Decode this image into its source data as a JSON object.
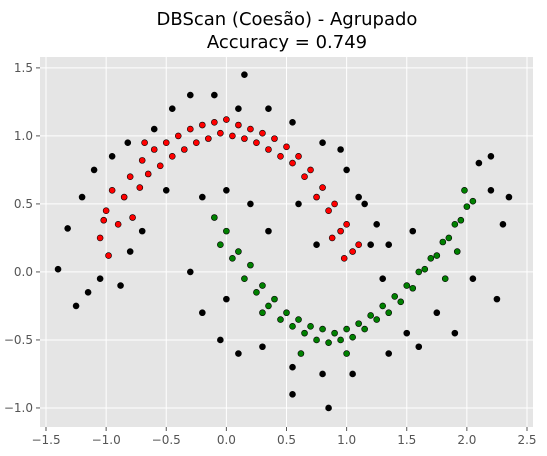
{
  "chart_data": {
    "type": "scatter",
    "title": "DBScan (Coesão) - Agrupado",
    "subtitle": "Accuracy = 0.749",
    "xlim": [
      -1.55,
      2.55
    ],
    "ylim": [
      -1.14,
      1.58
    ],
    "xticks": [
      -1.5,
      -1.0,
      -0.5,
      0.0,
      0.5,
      1.0,
      1.5,
      2.0,
      2.5
    ],
    "xtick_labels": [
      "−1.5",
      "−1.0",
      "−0.5",
      "0.0",
      "0.5",
      "1.0",
      "1.5",
      "2.0",
      "2.5"
    ],
    "yticks": [
      -1.0,
      -0.5,
      0.0,
      0.5,
      1.0,
      1.5
    ],
    "ytick_labels": [
      "−1.0",
      "−0.5",
      "0.0",
      "0.5",
      "1.0",
      "1.5"
    ],
    "grid": true,
    "background": "#e5e5e5",
    "series": [
      {
        "color": "#ff0000",
        "points": [
          [
            -1.05,
            0.25
          ],
          [
            -1.0,
            0.45
          ],
          [
            -0.95,
            0.6
          ],
          [
            -0.9,
            0.35
          ],
          [
            -0.85,
            0.55
          ],
          [
            -0.8,
            0.7
          ],
          [
            -0.78,
            0.4
          ],
          [
            -0.72,
            0.62
          ],
          [
            -0.7,
            0.82
          ],
          [
            -0.65,
            0.72
          ],
          [
            -0.6,
            0.9
          ],
          [
            -0.55,
            0.78
          ],
          [
            -0.5,
            0.95
          ],
          [
            -0.45,
            0.85
          ],
          [
            -0.4,
            1.0
          ],
          [
            -0.35,
            0.9
          ],
          [
            -0.3,
            1.05
          ],
          [
            -0.25,
            0.95
          ],
          [
            -0.2,
            1.08
          ],
          [
            -0.15,
            0.98
          ],
          [
            -0.1,
            1.1
          ],
          [
            -0.05,
            1.02
          ],
          [
            0.0,
            1.12
          ],
          [
            0.05,
            1.0
          ],
          [
            0.1,
            1.08
          ],
          [
            0.15,
            0.98
          ],
          [
            0.2,
            1.05
          ],
          [
            0.25,
            0.95
          ],
          [
            0.3,
            1.02
          ],
          [
            0.35,
            0.9
          ],
          [
            0.4,
            0.98
          ],
          [
            0.45,
            0.85
          ],
          [
            0.5,
            0.92
          ],
          [
            0.55,
            0.8
          ],
          [
            0.6,
            0.85
          ],
          [
            0.65,
            0.7
          ],
          [
            0.7,
            0.75
          ],
          [
            0.75,
            0.55
          ],
          [
            0.8,
            0.62
          ],
          [
            0.85,
            0.45
          ],
          [
            0.9,
            0.5
          ],
          [
            0.95,
            0.3
          ],
          [
            1.0,
            0.35
          ],
          [
            1.05,
            0.15
          ],
          [
            1.1,
            0.2
          ],
          [
            0.88,
            0.25
          ],
          [
            0.98,
            0.1
          ],
          [
            -0.98,
            0.12
          ],
          [
            -1.02,
            0.38
          ],
          [
            -0.68,
            0.95
          ]
        ]
      },
      {
        "color": "#008000",
        "points": [
          [
            -0.1,
            0.4
          ],
          [
            -0.05,
            0.2
          ],
          [
            0.0,
            0.3
          ],
          [
            0.05,
            0.1
          ],
          [
            0.1,
            0.15
          ],
          [
            0.15,
            -0.05
          ],
          [
            0.2,
            0.05
          ],
          [
            0.25,
            -0.15
          ],
          [
            0.3,
            -0.1
          ],
          [
            0.35,
            -0.25
          ],
          [
            0.4,
            -0.2
          ],
          [
            0.45,
            -0.35
          ],
          [
            0.5,
            -0.3
          ],
          [
            0.55,
            -0.4
          ],
          [
            0.6,
            -0.35
          ],
          [
            0.65,
            -0.45
          ],
          [
            0.7,
            -0.4
          ],
          [
            0.75,
            -0.5
          ],
          [
            0.8,
            -0.42
          ],
          [
            0.85,
            -0.52
          ],
          [
            0.9,
            -0.45
          ],
          [
            0.95,
            -0.5
          ],
          [
            1.0,
            -0.42
          ],
          [
            1.05,
            -0.48
          ],
          [
            1.1,
            -0.38
          ],
          [
            1.15,
            -0.42
          ],
          [
            1.2,
            -0.32
          ],
          [
            1.25,
            -0.35
          ],
          [
            1.3,
            -0.25
          ],
          [
            1.35,
            -0.3
          ],
          [
            1.4,
            -0.18
          ],
          [
            1.45,
            -0.22
          ],
          [
            1.5,
            -0.1
          ],
          [
            1.55,
            -0.12
          ],
          [
            1.6,
            0.0
          ],
          [
            1.65,
            0.02
          ],
          [
            1.7,
            0.1
          ],
          [
            1.75,
            0.12
          ],
          [
            1.8,
            0.22
          ],
          [
            1.85,
            0.25
          ],
          [
            1.9,
            0.35
          ],
          [
            1.95,
            0.38
          ],
          [
            2.0,
            0.48
          ],
          [
            2.05,
            0.52
          ],
          [
            1.98,
            0.6
          ],
          [
            1.92,
            0.15
          ],
          [
            1.82,
            -0.05
          ],
          [
            0.62,
            -0.6
          ],
          [
            1.0,
            -0.6
          ],
          [
            0.3,
            -0.3
          ]
        ]
      },
      {
        "color": "#000000",
        "points": [
          [
            -1.4,
            0.02
          ],
          [
            -1.32,
            0.32
          ],
          [
            -1.25,
            -0.25
          ],
          [
            -1.2,
            0.55
          ],
          [
            -1.15,
            -0.15
          ],
          [
            -1.1,
            0.75
          ],
          [
            -1.05,
            -0.05
          ],
          [
            -0.95,
            0.85
          ],
          [
            -0.88,
            -0.1
          ],
          [
            -0.82,
            0.95
          ],
          [
            -0.6,
            1.05
          ],
          [
            -0.45,
            1.2
          ],
          [
            -0.3,
            1.3
          ],
          [
            -0.1,
            1.3
          ],
          [
            0.1,
            1.2
          ],
          [
            0.35,
            1.2
          ],
          [
            0.55,
            1.1
          ],
          [
            0.8,
            0.95
          ],
          [
            1.0,
            0.75
          ],
          [
            1.15,
            0.5
          ],
          [
            1.2,
            0.2
          ],
          [
            0.1,
            -0.6
          ],
          [
            -0.2,
            -0.3
          ],
          [
            -0.3,
            0.0
          ],
          [
            0.55,
            -0.7
          ],
          [
            0.8,
            -0.75
          ],
          [
            1.05,
            -0.75
          ],
          [
            1.35,
            -0.6
          ],
          [
            1.6,
            -0.55
          ],
          [
            1.9,
            -0.45
          ],
          [
            2.1,
            0.8
          ],
          [
            2.2,
            0.6
          ],
          [
            2.3,
            0.35
          ],
          [
            2.25,
            -0.2
          ],
          [
            2.05,
            -0.05
          ],
          [
            1.55,
            0.3
          ],
          [
            1.35,
            0.2
          ],
          [
            0.2,
            0.5
          ],
          [
            0.35,
            0.3
          ],
          [
            0.0,
            -0.2
          ],
          [
            0.55,
            -0.9
          ],
          [
            0.85,
            -1.0
          ],
          [
            0.75,
            0.2
          ],
          [
            0.6,
            0.5
          ],
          [
            -0.2,
            0.55
          ],
          [
            0.0,
            0.6
          ],
          [
            -0.5,
            0.6
          ],
          [
            -0.7,
            0.3
          ],
          [
            -0.8,
            0.15
          ],
          [
            0.15,
            1.45
          ],
          [
            0.95,
            0.9
          ],
          [
            1.1,
            0.55
          ],
          [
            1.25,
            0.35
          ],
          [
            1.5,
            -0.45
          ],
          [
            1.75,
            -0.3
          ],
          [
            -0.05,
            -0.5
          ],
          [
            0.3,
            -0.55
          ],
          [
            2.35,
            0.55
          ],
          [
            2.2,
            0.85
          ],
          [
            1.3,
            -0.05
          ]
        ]
      }
    ]
  }
}
